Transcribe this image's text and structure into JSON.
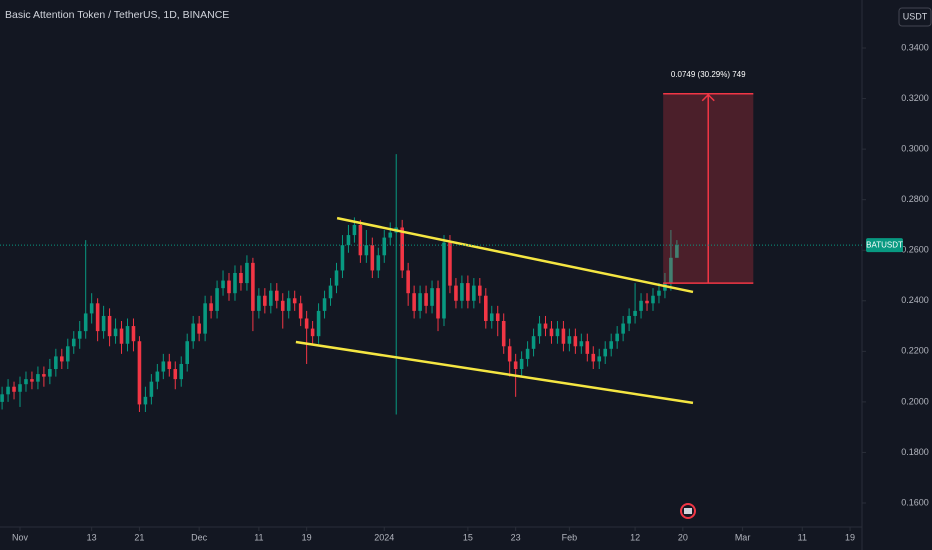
{
  "chart_data": {
    "type": "candlestick",
    "title": "Basic Attention Token / TetherUS, 1D, BINANCE",
    "currency": "USDT",
    "symbol_label": "BATUSDT",
    "up_color": "#089981",
    "down_color": "#f23645",
    "x": [
      -3,
      -2,
      -1,
      0,
      1,
      2,
      3,
      4,
      5,
      6,
      7,
      8,
      9,
      10,
      11,
      12,
      13,
      14,
      15,
      16,
      17,
      18,
      19,
      20,
      21,
      22,
      23,
      24,
      25,
      26,
      27,
      28,
      29,
      30,
      31,
      32,
      33,
      34,
      35,
      36,
      37,
      38,
      39,
      40,
      41,
      42,
      43,
      44,
      45,
      46,
      47,
      48,
      49,
      50,
      51,
      52,
      53,
      54,
      55,
      56,
      57,
      58,
      59,
      60,
      61,
      62,
      63,
      64,
      65,
      66,
      67,
      68,
      69,
      70,
      71,
      72,
      73,
      74,
      75,
      76,
      77,
      78,
      79,
      80,
      81,
      82,
      83,
      84,
      85,
      86,
      87,
      88,
      89,
      90,
      91,
      92,
      93,
      94,
      95,
      96,
      97,
      98,
      99,
      100,
      101,
      102,
      103,
      104,
      105,
      106,
      107,
      108,
      109,
      110
    ],
    "open": [
      0.2,
      0.203,
      0.206,
      0.204,
      0.207,
      0.209,
      0.208,
      0.211,
      0.21,
      0.213,
      0.218,
      0.216,
      0.222,
      0.225,
      0.228,
      0.235,
      0.239,
      0.228,
      0.234,
      0.226,
      0.229,
      0.223,
      0.23,
      0.224,
      0.199,
      0.202,
      0.208,
      0.212,
      0.216,
      0.213,
      0.209,
      0.215,
      0.224,
      0.231,
      0.227,
      0.239,
      0.236,
      0.245,
      0.248,
      0.243,
      0.251,
      0.247,
      0.255,
      0.236,
      0.242,
      0.238,
      0.244,
      0.24,
      0.236,
      0.241,
      0.239,
      0.233,
      0.229,
      0.226,
      0.236,
      0.241,
      0.246,
      0.252,
      0.262,
      0.266,
      0.27,
      0.258,
      0.262,
      0.252,
      0.258,
      0.265,
      0.267,
      0.269,
      0.252,
      0.243,
      0.236,
      0.243,
      0.238,
      0.245,
      0.233,
      0.263,
      0.246,
      0.24,
      0.247,
      0.24,
      0.246,
      0.242,
      0.232,
      0.235,
      0.232,
      0.222,
      0.216,
      0.213,
      0.217,
      0.221,
      0.226,
      0.231,
      0.229,
      0.226,
      0.229,
      0.223,
      0.226,
      0.222,
      0.224,
      0.219,
      0.216,
      0.218,
      0.221,
      0.224,
      0.227,
      0.231,
      0.234,
      0.236,
      0.24,
      0.239,
      0.242,
      0.244,
      0.247,
      0.257
    ],
    "high": [
      0.206,
      0.209,
      0.208,
      0.21,
      0.212,
      0.212,
      0.214,
      0.214,
      0.217,
      0.221,
      0.221,
      0.225,
      0.228,
      0.232,
      0.264,
      0.243,
      0.241,
      0.238,
      0.237,
      0.233,
      0.232,
      0.233,
      0.233,
      0.226,
      0.206,
      0.211,
      0.215,
      0.219,
      0.219,
      0.216,
      0.218,
      0.227,
      0.234,
      0.234,
      0.242,
      0.242,
      0.248,
      0.252,
      0.251,
      0.254,
      0.254,
      0.258,
      0.257,
      0.245,
      0.245,
      0.247,
      0.247,
      0.243,
      0.244,
      0.244,
      0.242,
      0.236,
      0.232,
      0.239,
      0.244,
      0.249,
      0.255,
      0.266,
      0.27,
      0.273,
      0.272,
      0.268,
      0.265,
      0.261,
      0.268,
      0.271,
      0.298,
      0.272,
      0.255,
      0.246,
      0.246,
      0.246,
      0.248,
      0.248,
      0.266,
      0.266,
      0.249,
      0.25,
      0.25,
      0.249,
      0.249,
      0.245,
      0.238,
      0.238,
      0.235,
      0.225,
      0.219,
      0.22,
      0.224,
      0.229,
      0.234,
      0.234,
      0.232,
      0.232,
      0.232,
      0.229,
      0.229,
      0.227,
      0.227,
      0.222,
      0.221,
      0.224,
      0.227,
      0.23,
      0.234,
      0.237,
      0.247,
      0.243,
      0.243,
      0.245,
      0.247,
      0.251,
      0.268,
      0.264
    ],
    "low": [
      0.197,
      0.2,
      0.201,
      0.198,
      0.204,
      0.205,
      0.205,
      0.206,
      0.207,
      0.21,
      0.213,
      0.213,
      0.219,
      0.221,
      0.225,
      0.231,
      0.224,
      0.225,
      0.222,
      0.223,
      0.219,
      0.22,
      0.22,
      0.196,
      0.196,
      0.199,
      0.205,
      0.209,
      0.21,
      0.205,
      0.206,
      0.212,
      0.221,
      0.224,
      0.224,
      0.233,
      0.233,
      0.242,
      0.24,
      0.24,
      0.244,
      0.244,
      0.228,
      0.233,
      0.235,
      0.235,
      0.237,
      0.229,
      0.233,
      0.236,
      0.23,
      0.215,
      0.223,
      0.223,
      0.233,
      0.238,
      0.243,
      0.249,
      0.259,
      0.263,
      0.255,
      0.255,
      0.249,
      0.249,
      0.255,
      0.262,
      0.195,
      0.249,
      0.238,
      0.233,
      0.233,
      0.235,
      0.235,
      0.228,
      0.23,
      0.243,
      0.237,
      0.237,
      0.237,
      0.237,
      0.239,
      0.229,
      0.229,
      0.226,
      0.219,
      0.21,
      0.202,
      0.21,
      0.214,
      0.218,
      0.223,
      0.226,
      0.223,
      0.223,
      0.22,
      0.22,
      0.219,
      0.219,
      0.216,
      0.213,
      0.213,
      0.215,
      0.218,
      0.221,
      0.224,
      0.228,
      0.231,
      0.233,
      0.236,
      0.236,
      0.239,
      0.241,
      0.244,
      0.259
    ],
    "close": [
      0.203,
      0.206,
      0.204,
      0.207,
      0.209,
      0.208,
      0.211,
      0.21,
      0.213,
      0.218,
      0.216,
      0.222,
      0.225,
      0.228,
      0.235,
      0.239,
      0.228,
      0.234,
      0.226,
      0.229,
      0.223,
      0.23,
      0.224,
      0.199,
      0.202,
      0.208,
      0.212,
      0.216,
      0.213,
      0.209,
      0.215,
      0.224,
      0.231,
      0.227,
      0.239,
      0.236,
      0.245,
      0.248,
      0.243,
      0.251,
      0.247,
      0.255,
      0.236,
      0.242,
      0.238,
      0.244,
      0.24,
      0.236,
      0.241,
      0.239,
      0.233,
      0.229,
      0.226,
      0.236,
      0.241,
      0.246,
      0.252,
      0.262,
      0.266,
      0.27,
      0.258,
      0.262,
      0.252,
      0.258,
      0.265,
      0.267,
      0.269,
      0.252,
      0.243,
      0.236,
      0.243,
      0.238,
      0.245,
      0.233,
      0.263,
      0.246,
      0.24,
      0.247,
      0.24,
      0.246,
      0.242,
      0.232,
      0.235,
      0.232,
      0.222,
      0.216,
      0.213,
      0.217,
      0.221,
      0.226,
      0.231,
      0.229,
      0.226,
      0.229,
      0.223,
      0.226,
      0.222,
      0.224,
      0.219,
      0.216,
      0.218,
      0.221,
      0.224,
      0.227,
      0.231,
      0.234,
      0.236,
      0.24,
      0.239,
      0.242,
      0.244,
      0.247,
      0.257,
      0.262
    ],
    "xlim": [
      -3.35,
      141
    ],
    "xticks": [
      {
        "value": 0,
        "label": "Nov"
      },
      {
        "value": 12,
        "label": "13"
      },
      {
        "value": 20,
        "label": "21"
      },
      {
        "value": 30,
        "label": "Dec"
      },
      {
        "value": 40,
        "label": "11"
      },
      {
        "value": 48,
        "label": "19"
      },
      {
        "value": 61,
        "label": "2024"
      },
      {
        "value": 75,
        "label": "15"
      },
      {
        "value": 83,
        "label": "23"
      },
      {
        "value": 92,
        "label": "Feb"
      },
      {
        "value": 103,
        "label": "12"
      },
      {
        "value": 111,
        "label": "20"
      },
      {
        "value": 121,
        "label": "Mar"
      },
      {
        "value": 131,
        "label": "11"
      },
      {
        "value": 139,
        "label": "19"
      }
    ],
    "ylim": [
      0.1505,
      0.359
    ],
    "yticks": [
      {
        "value": 0.16,
        "label": "0.1600"
      },
      {
        "value": 0.18,
        "label": "0.1800"
      },
      {
        "value": 0.2,
        "label": "0.2000"
      },
      {
        "value": 0.22,
        "label": "0.2200"
      },
      {
        "value": 0.24,
        "label": "0.2400"
      },
      {
        "value": 0.26,
        "label": "0.2600"
      },
      {
        "value": 0.28,
        "label": "0.2800"
      },
      {
        "value": 0.3,
        "label": "0.3000"
      },
      {
        "value": 0.32,
        "label": "0.3200"
      },
      {
        "value": 0.34,
        "label": "0.3400"
      }
    ],
    "trendlines": [
      {
        "x": [
          53.1,
          112.7
        ],
        "y": [
          0.2727,
          0.2435
        ],
        "color": "#f5e642"
      },
      {
        "x": [
          46.2,
          112.7
        ],
        "y": [
          0.2237,
          0.1996
        ],
        "color": "#f5e642"
      }
    ],
    "position": {
      "x": [
        107.7,
        122.8
      ],
      "top": 0.3219,
      "bottom": 0.247,
      "label": "0.0749 (30.29%) 749",
      "color": "#f23645"
    }
  }
}
